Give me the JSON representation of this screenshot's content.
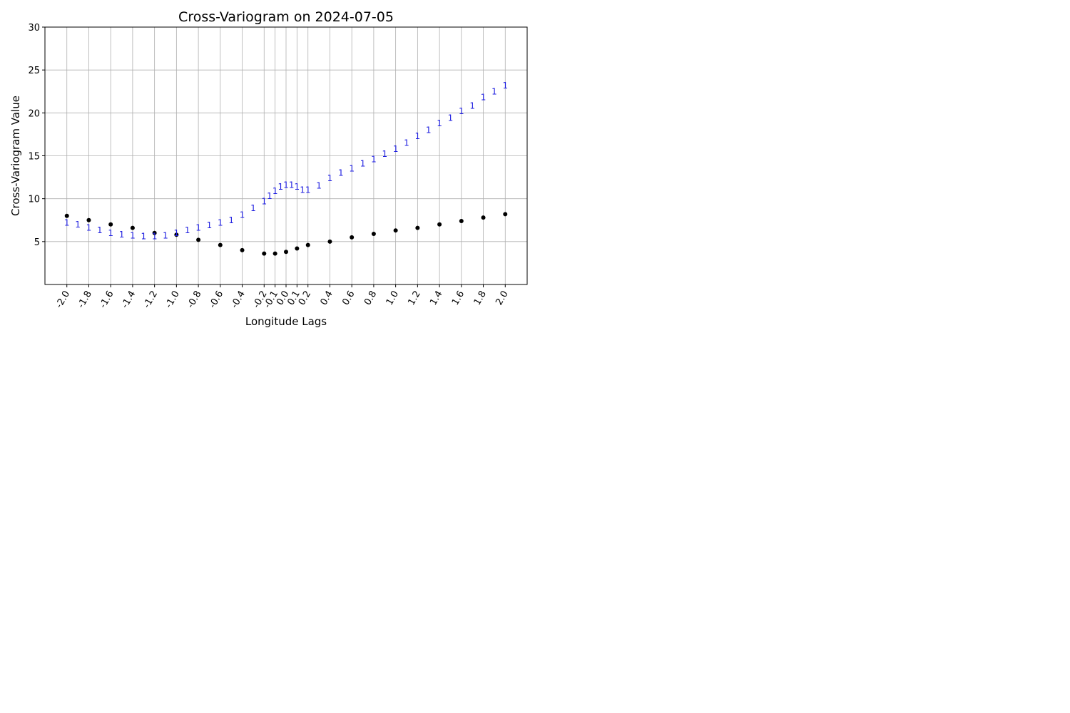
{
  "chart_data": [
    {
      "type": "scatter",
      "title": "Cross-Variogram on 2024-07-05",
      "xlabel": "Longitude Lags",
      "ylabel": "Cross-Variogram Value",
      "ylim": [
        0,
        30
      ],
      "yticks": [
        5,
        10,
        15,
        20,
        25,
        30
      ],
      "grid": true,
      "x_ticks": [
        -2.0,
        -1.8,
        -1.6,
        -1.4,
        -1.2,
        -1.0,
        -0.8,
        -0.6,
        -0.4,
        -0.2,
        -0.1,
        0.0,
        0.1,
        0.2,
        0.4,
        0.6,
        0.8,
        1.0,
        1.2,
        1.4,
        1.6,
        1.8,
        2.0
      ],
      "x_tick_labels": [
        "-2.0",
        "-1.8",
        "-1.6",
        "-1.4",
        "-1.2",
        "-1.0",
        "-0.8",
        "-0.6",
        "-0.4",
        "-0.2",
        "-0.1",
        "0.0",
        "0.1",
        "0.2",
        "0.4",
        "0.6",
        "0.8",
        "1.0",
        "1.2",
        "1.4",
        "1.6",
        "1.8",
        "2.0"
      ],
      "lags": [
        -2.0,
        -1.9,
        -1.8,
        -1.7,
        -1.6,
        -1.5,
        -1.4,
        -1.3,
        -1.2,
        -1.1,
        -1.0,
        -0.9,
        -0.8,
        -0.7,
        -0.6,
        -0.5,
        -0.4,
        -0.3,
        -0.2,
        -0.15,
        -0.1,
        -0.05,
        0.0,
        0.05,
        0.1,
        0.15,
        0.2,
        0.3,
        0.4,
        0.5,
        0.6,
        0.7,
        0.8,
        0.9,
        1.0,
        1.1,
        1.2,
        1.3,
        1.4,
        1.5,
        1.6,
        1.7,
        1.8,
        1.9,
        2.0
      ],
      "point_lags": [
        -2.0,
        -1.8,
        -1.6,
        -1.4,
        -1.2,
        -1.0,
        -0.8,
        -0.6,
        -0.4,
        -0.2,
        -0.1,
        0.0,
        0.1,
        0.2,
        0.4,
        0.6,
        0.8,
        1.0,
        1.2,
        1.4,
        1.6,
        1.8,
        2.0
      ],
      "point_vals": [
        8.0,
        7.5,
        7.0,
        6.6,
        6.0,
        5.8,
        5.2,
        4.6,
        4.0,
        3.6,
        3.6,
        3.8,
        4.2,
        4.6,
        5.0,
        5.5,
        5.9,
        6.3,
        6.6,
        7.0,
        7.4,
        7.8,
        8.2
      ],
      "label_series": [
        {
          "name": "1",
          "values": [
            7.2,
            7.0,
            6.6,
            6.3,
            6.0,
            5.8,
            5.7,
            5.6,
            5.6,
            5.7,
            6.0,
            6.3,
            6.6,
            6.9,
            7.2,
            7.5,
            8.1,
            8.9,
            9.7,
            10.3,
            10.9,
            11.4,
            11.6,
            11.6,
            11.4,
            11.0,
            11.0,
            11.5,
            12.4,
            13.0,
            13.5,
            14.1,
            14.6,
            15.2,
            15.8,
            16.5,
            17.3,
            18.0,
            18.8,
            19.4,
            20.2,
            20.8,
            21.8,
            22.5,
            23.2
          ]
        }
      ]
    }
  ]
}
